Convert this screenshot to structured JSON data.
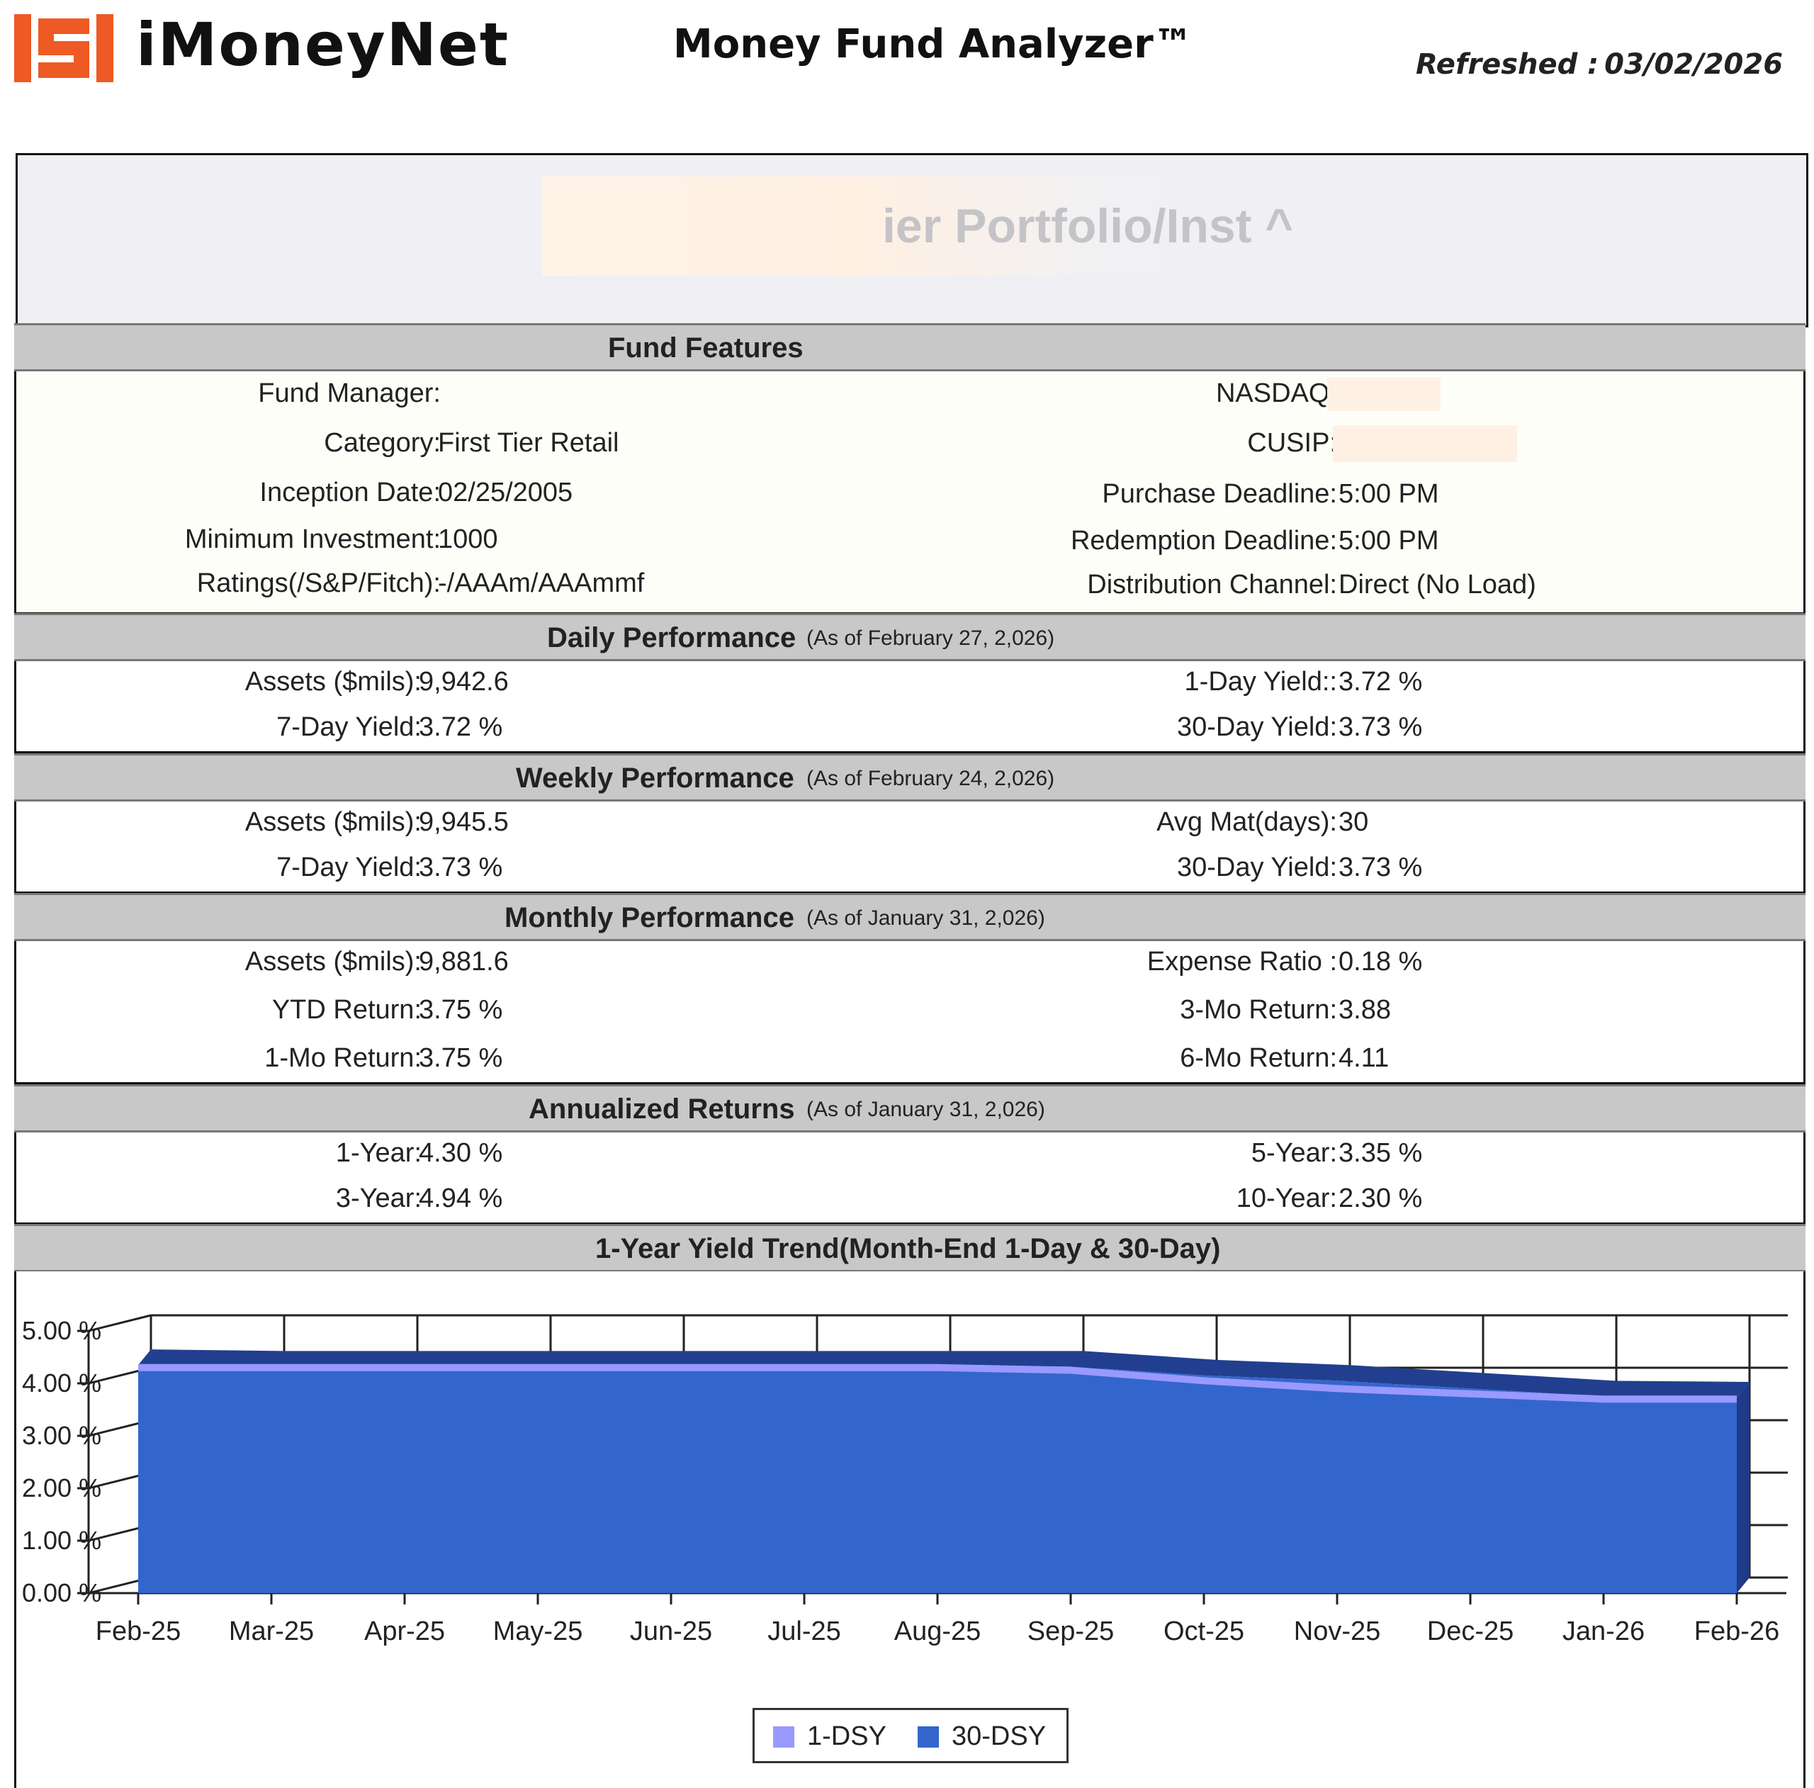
{
  "header": {
    "brand": "iMoneyNet",
    "app_title": "Money Fund Analyzer™",
    "refreshed_label": "Refreshed :",
    "refreshed_date": "03/02/2026",
    "logo_color": "#ee5a24"
  },
  "fund": {
    "name_visible": "ier Portfolio/Inst ^"
  },
  "fund_features": {
    "title": "Fund Features",
    "fund_manager_label": "Fund Manager:",
    "fund_manager_value": "",
    "category_label": "Category:",
    "category_value": "First Tier Retail",
    "inception_label": "Inception Date:",
    "inception_value": "02/25/2005",
    "min_invest_label": "Minimum Investment:",
    "min_invest_value": "1000",
    "ratings_label": "Ratings(/S&P/Fitch):",
    "ratings_value": "-/AAAm/AAAmmf",
    "nasdaq_label": "NASDAQ:",
    "cusip_label": "CUSIP:",
    "purchase_label": "Purchase Deadline:",
    "purchase_value": "5:00 PM",
    "redemption_label": "Redemption Deadline:",
    "redemption_value": "5:00 PM",
    "channel_label": "Distribution Channel:",
    "channel_value": "Direct (No Load)"
  },
  "daily": {
    "title": "Daily Performance",
    "as_of": "(As of February 27, 2,026)",
    "assets_label": "Assets ($mils):",
    "assets_value": "9,942.6",
    "yield7_label": "7-Day Yield:",
    "yield7_value": "3.72 %",
    "yield1_label": "1-Day Yield::",
    "yield1_value": "3.72 %",
    "yield30_label": "30-Day Yield:",
    "yield30_value": "3.73 %"
  },
  "weekly": {
    "title": "Weekly Performance",
    "as_of": "(As of February 24, 2,026)",
    "assets_label": "Assets ($mils):",
    "assets_value": "9,945.5",
    "yield7_label": "7-Day Yield:",
    "yield7_value": "3.73 %",
    "avgmat_label": "Avg Mat(days):",
    "avgmat_value": "30",
    "yield30_label": "30-Day Yield:",
    "yield30_value": "3.73 %"
  },
  "monthly": {
    "title": "Monthly Performance",
    "as_of": "(As of January 31, 2,026)",
    "assets_label": "Assets ($mils):",
    "assets_value": "9,881.6",
    "ytd_label": "YTD Return:",
    "ytd_value": "3.75 %",
    "mo1_label": "1-Mo Return:",
    "mo1_value": "3.75 %",
    "expense_label": "Expense Ratio :",
    "expense_value": "0.18 %",
    "mo3_label": "3-Mo Return:",
    "mo3_value": "3.88",
    "mo6_label": "6-Mo Return:",
    "mo6_value": "4.11"
  },
  "annualized": {
    "title": "Annualized Returns",
    "as_of": "(As of January 31, 2,026)",
    "y1_label": "1-Year:",
    "y1_value": "4.30 %",
    "y3_label": "3-Year:",
    "y3_value": "4.94 %",
    "y5_label": "5-Year:",
    "y5_value": "3.35 %",
    "y10_label": "10-Year:",
    "y10_value": "2.30 %"
  },
  "chart_data": {
    "type": "area",
    "title": "1-Year Yield Trend(Month-End 1-Day & 30-Day)",
    "categories": [
      "Feb-25",
      "Mar-25",
      "Apr-25",
      "May-25",
      "Jun-25",
      "Jul-25",
      "Aug-25",
      "Sep-25",
      "Oct-25",
      "Nov-25",
      "Dec-25",
      "Jan-26",
      "Feb-26"
    ],
    "series": [
      {
        "name": "1-DSY",
        "color": "#9999ff",
        "values": [
          4.3,
          4.3,
          4.3,
          4.3,
          4.3,
          4.3,
          4.3,
          4.25,
          4.05,
          3.9,
          3.8,
          3.7,
          3.7
        ]
      },
      {
        "name": "30-DSY",
        "color": "#3366cc",
        "values": [
          4.35,
          4.32,
          4.32,
          4.32,
          4.32,
          4.32,
          4.32,
          4.32,
          4.15,
          4.05,
          3.9,
          3.75,
          3.73
        ]
      }
    ],
    "yticks": [
      "5.00 %",
      "4.00 %",
      "3.00 %",
      "2.00 %",
      "1.00 %",
      "0.00 %"
    ],
    "ylim": [
      0,
      5
    ],
    "grid": true,
    "legend_position": "bottom-center"
  }
}
